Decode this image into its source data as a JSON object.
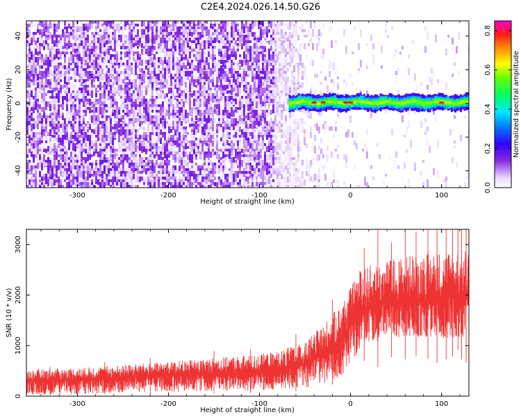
{
  "figure_title": "C2E4.2024.026.14.50.G26",
  "chart_data": [
    {
      "type": "heatmap",
      "title": "C2E4.2024.026.14.50.G26",
      "xlabel": "Height of straight line (km)",
      "ylabel": "Frequency (Hz)",
      "xlim": [
        -356,
        130
      ],
      "ylim": [
        -50,
        49
      ],
      "x_ticks": [
        -300,
        -200,
        -100,
        0,
        100
      ],
      "x_tick_labels": [
        "-300",
        "-200",
        "-100",
        "0",
        "100"
      ],
      "y_ticks": [
        -40,
        -20,
        0,
        20,
        40
      ],
      "y_tick_labels": [
        "-40",
        "-20",
        "0",
        "20",
        "40"
      ],
      "colorbar": {
        "label": "Normalized spectral amplitude",
        "range": [
          0.0,
          0.85
        ],
        "ticks": [
          0.0,
          0.2,
          0.4,
          0.6,
          0.8
        ],
        "tick_labels": [
          "0.0",
          "0.2",
          "0.4",
          "0.6",
          "0.8"
        ],
        "colormap": "rainbow (white, violet, blue, cyan, green, yellow, red, magenta)"
      },
      "features": {
        "noise_region_x": [
          -356,
          -85
        ],
        "noise_amplitude": [
          0.0,
          0.15
        ],
        "transition_region_x": [
          -85,
          -10
        ],
        "carrier_band_x": [
          -68,
          130
        ],
        "carrier_frequency_hz": 0.5,
        "carrier_band_width_hz": 6,
        "carrier_peak_amplitude": 0.85,
        "peak_positions_x": [
          -40,
          -30,
          -5,
          0,
          100
        ]
      },
      "grid": false,
      "legend": "none"
    },
    {
      "type": "line",
      "title": "",
      "xlabel": "Height of straight line (km)",
      "ylabel": "SNR (10 * v/v)",
      "xlim": [
        -356,
        130
      ],
      "ylim": [
        0,
        3300
      ],
      "x_ticks": [
        -300,
        -200,
        -100,
        0,
        100
      ],
      "x_tick_labels": [
        "-300",
        "-200",
        "-100",
        "0",
        "100"
      ],
      "y_ticks": [
        0,
        1000,
        2000,
        3000
      ],
      "y_tick_labels": [
        "0",
        "1000",
        "2000",
        "3000"
      ],
      "series": [
        {
          "color": "#ee3333",
          "envelope": {
            "x": [
              -356,
              -300,
              -250,
              -200,
              -150,
              -100,
              -75,
              -50,
              -25,
              -10,
              0,
              10,
              25,
              50,
              75,
              100,
              130
            ],
            "y_min": [
              30,
              40,
              60,
              80,
              100,
              110,
              130,
              160,
              260,
              380,
              560,
              880,
              1080,
              1130,
              1140,
              1140,
              1160
            ],
            "y_max": [
              520,
              560,
              620,
              680,
              760,
              830,
              920,
              1060,
              1520,
              1840,
              2150,
              2500,
              2620,
              2740,
              2840,
              2880,
              2920
            ],
            "y_mean": [
              300,
              330,
              380,
              420,
              450,
              480,
              540,
              650,
              880,
              1120,
              1420,
              1680,
              1800,
              1860,
              1900,
              1940,
              2000
            ]
          },
          "max_spike": 3300
        }
      ],
      "grid": false,
      "legend": "none"
    }
  ]
}
